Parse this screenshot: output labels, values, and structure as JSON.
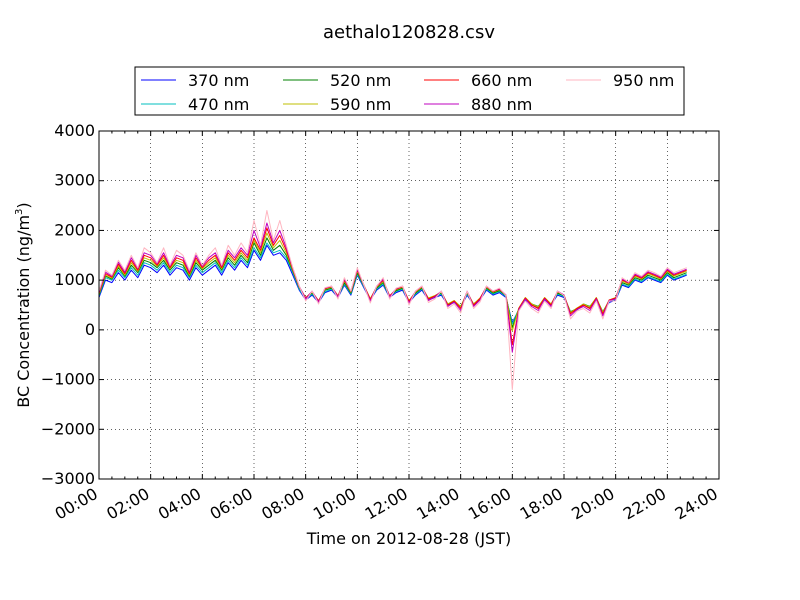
{
  "chart_data": {
    "type": "line",
    "title": "aethalo120828.csv",
    "xlabel": "Time on 2012-08-28 (JST)",
    "ylabel": "BC Concentration (ng/m",
    "ylabel_sup": "3",
    "ylabel_tail": ")",
    "x_unit": "hours",
    "xlim": [
      0,
      24
    ],
    "ylim": [
      -3000,
      4000
    ],
    "grid": true,
    "legend_placement": "top, above plot",
    "x_ticks": [
      {
        "value": 0,
        "label": "00:00"
      },
      {
        "value": 2,
        "label": "02:00"
      },
      {
        "value": 4,
        "label": "04:00"
      },
      {
        "value": 6,
        "label": "06:00"
      },
      {
        "value": 8,
        "label": "08:00"
      },
      {
        "value": 10,
        "label": "10:00"
      },
      {
        "value": 12,
        "label": "12:00"
      },
      {
        "value": 14,
        "label": "14:00"
      },
      {
        "value": 16,
        "label": "16:00"
      },
      {
        "value": 18,
        "label": "18:00"
      },
      {
        "value": 20,
        "label": "20:00"
      },
      {
        "value": 22,
        "label": "22:00"
      },
      {
        "value": 24,
        "label": "24:00"
      }
    ],
    "y_ticks": [
      {
        "value": 4000,
        "label": "4000"
      },
      {
        "value": 3000,
        "label": "3000"
      },
      {
        "value": 2000,
        "label": "2000"
      },
      {
        "value": 1000,
        "label": "1000"
      },
      {
        "value": 0,
        "label": "0"
      },
      {
        "value": -1000,
        "label": "−1000"
      },
      {
        "value": -2000,
        "label": "−2000"
      },
      {
        "value": -3000,
        "label": "−3000"
      }
    ],
    "x": [
      0.0,
      0.25,
      0.5,
      0.75,
      1.0,
      1.25,
      1.5,
      1.75,
      2.0,
      2.25,
      2.5,
      2.75,
      3.0,
      3.25,
      3.5,
      3.75,
      4.0,
      4.25,
      4.5,
      4.75,
      5.0,
      5.25,
      5.5,
      5.75,
      6.0,
      6.25,
      6.5,
      6.75,
      7.0,
      7.25,
      7.5,
      7.75,
      8.0,
      8.25,
      8.5,
      8.75,
      9.0,
      9.25,
      9.5,
      9.75,
      10.0,
      10.25,
      10.5,
      10.75,
      11.0,
      11.25,
      11.5,
      11.75,
      12.0,
      12.25,
      12.5,
      12.75,
      13.0,
      13.25,
      13.5,
      13.75,
      14.0,
      14.25,
      14.5,
      14.75,
      15.0,
      15.25,
      15.5,
      15.75,
      16.0,
      16.25,
      16.5,
      16.75,
      17.0,
      17.25,
      17.5,
      17.75,
      18.0,
      18.25,
      18.5,
      18.75,
      19.0,
      19.25,
      19.5,
      19.75,
      20.0,
      20.25,
      20.5,
      20.75,
      21.0,
      21.25,
      21.5,
      21.75,
      22.0,
      22.25,
      22.5,
      22.75
    ],
    "series": [
      {
        "name": "370 nm",
        "color": "#0000ff",
        "values": [
          650,
          1000,
          950,
          1150,
          1000,
          1200,
          1050,
          1300,
          1250,
          1150,
          1300,
          1100,
          1250,
          1200,
          1000,
          1250,
          1100,
          1200,
          1300,
          1100,
          1350,
          1200,
          1400,
          1250,
          1600,
          1400,
          1700,
          1500,
          1550,
          1400,
          1100,
          800,
          600,
          700,
          550,
          750,
          800,
          650,
          900,
          700,
          1100,
          850,
          600,
          800,
          900,
          650,
          750,
          800,
          550,
          700,
          800,
          600,
          650,
          700,
          500,
          550,
          450,
          700,
          500,
          600,
          800,
          700,
          750,
          650,
          150,
          400,
          600,
          500,
          450,
          600,
          500,
          700,
          650,
          350,
          400,
          500,
          450,
          600,
          350,
          550,
          600,
          900,
          850,
          1000,
          950,
          1050,
          1000,
          950,
          1100,
          1000,
          1050,
          1100
        ]
      },
      {
        "name": "470 nm",
        "color": "#00bfbf",
        "values": [
          680,
          1050,
          1000,
          1200,
          1050,
          1250,
          1100,
          1350,
          1300,
          1200,
          1350,
          1150,
          1300,
          1250,
          1050,
          1300,
          1150,
          1250,
          1350,
          1150,
          1400,
          1250,
          1450,
          1300,
          1650,
          1450,
          1750,
          1550,
          1600,
          1450,
          1150,
          820,
          620,
          720,
          570,
          770,
          820,
          670,
          920,
          720,
          1120,
          870,
          620,
          820,
          920,
          670,
          770,
          820,
          570,
          720,
          820,
          620,
          670,
          720,
          520,
          570,
          470,
          720,
          520,
          620,
          820,
          720,
          770,
          670,
          120,
          420,
          620,
          520,
          470,
          620,
          520,
          720,
          670,
          370,
          420,
          520,
          470,
          620,
          370,
          570,
          620,
          920,
          870,
          1020,
          970,
          1070,
          1020,
          970,
          1120,
          1020,
          1070,
          1120
        ]
      },
      {
        "name": "520 nm",
        "color": "#008000",
        "values": [
          700,
          1080,
          1020,
          1250,
          1080,
          1300,
          1150,
          1400,
          1350,
          1250,
          1400,
          1200,
          1350,
          1300,
          1080,
          1350,
          1200,
          1300,
          1400,
          1200,
          1450,
          1300,
          1500,
          1350,
          1750,
          1500,
          1850,
          1600,
          1700,
          1500,
          1180,
          850,
          640,
          740,
          580,
          800,
          840,
          680,
          950,
          740,
          1150,
          890,
          620,
          840,
          950,
          680,
          790,
          840,
          580,
          740,
          840,
          630,
          680,
          740,
          520,
          580,
          470,
          740,
          520,
          630,
          840,
          740,
          790,
          690,
          50,
          430,
          640,
          520,
          470,
          640,
          520,
          740,
          690,
          360,
          430,
          520,
          470,
          640,
          360,
          590,
          640,
          950,
          900,
          1050,
          1000,
          1100,
          1050,
          1000,
          1150,
          1050,
          1100,
          1150
        ]
      },
      {
        "name": "590 nm",
        "color": "#bfbf00",
        "values": [
          720,
          1100,
          1040,
          1280,
          1100,
          1350,
          1180,
          1450,
          1400,
          1280,
          1450,
          1230,
          1400,
          1350,
          1100,
          1400,
          1230,
          1350,
          1450,
          1230,
          1500,
          1350,
          1550,
          1400,
          1800,
          1550,
          1950,
          1650,
          1800,
          1550,
          1200,
          860,
          650,
          760,
          590,
          820,
          860,
          690,
          980,
          760,
          1180,
          900,
          630,
          860,
          980,
          690,
          810,
          860,
          590,
          760,
          860,
          640,
          690,
          760,
          520,
          590,
          460,
          760,
          520,
          640,
          860,
          760,
          810,
          700,
          -20,
          440,
          650,
          520,
          460,
          650,
          520,
          760,
          700,
          350,
          440,
          520,
          460,
          650,
          350,
          600,
          650,
          980,
          920,
          1080,
          1020,
          1130,
          1080,
          1020,
          1180,
          1080,
          1130,
          1180
        ]
      },
      {
        "name": "660 nm",
        "color": "#ff0000",
        "values": [
          740,
          1130,
          1060,
          1320,
          1130,
          1400,
          1200,
          1500,
          1450,
          1300,
          1500,
          1250,
          1450,
          1400,
          1130,
          1450,
          1250,
          1400,
          1500,
          1250,
          1550,
          1400,
          1600,
          1450,
          1850,
          1600,
          2050,
          1700,
          1900,
          1600,
          1220,
          870,
          640,
          770,
          580,
          830,
          870,
          680,
          1000,
          770,
          1200,
          900,
          610,
          870,
          1000,
          680,
          820,
          870,
          570,
          770,
          870,
          620,
          680,
          770,
          500,
          580,
          430,
          770,
          500,
          630,
          870,
          770,
          820,
          700,
          -300,
          430,
          640,
          500,
          430,
          640,
          500,
          770,
          700,
          320,
          430,
          500,
          430,
          640,
          320,
          600,
          640,
          1000,
          940,
          1100,
          1040,
          1150,
          1100,
          1040,
          1200,
          1100,
          1150,
          1200
        ]
      },
      {
        "name": "880 nm",
        "color": "#bf00bf",
        "values": [
          760,
          1160,
          1080,
          1360,
          1160,
          1450,
          1230,
          1550,
          1500,
          1330,
          1550,
          1280,
          1500,
          1450,
          1160,
          1500,
          1280,
          1450,
          1550,
          1280,
          1600,
          1450,
          1650,
          1500,
          2000,
          1650,
          2150,
          1750,
          2000,
          1650,
          1240,
          880,
          620,
          780,
          560,
          840,
          880,
          660,
          1020,
          780,
          1220,
          900,
          580,
          880,
          1020,
          660,
          830,
          880,
          540,
          780,
          880,
          590,
          660,
          780,
          470,
          560,
          390,
          780,
          470,
          600,
          880,
          780,
          830,
          700,
          -450,
          410,
          620,
          470,
          390,
          620,
          470,
          780,
          700,
          280,
          410,
          470,
          390,
          620,
          280,
          590,
          620,
          1020,
          950,
          1120,
          1060,
          1170,
          1120,
          1060,
          1220,
          1120,
          1170,
          1220
        ]
      },
      {
        "name": "950 nm",
        "color": "#ffb6c1",
        "values": [
          780,
          1200,
          1100,
          1400,
          1200,
          1500,
          1250,
          1650,
          1550,
          1350,
          1650,
          1300,
          1600,
          1500,
          1200,
          1550,
          1300,
          1500,
          1650,
          1300,
          1700,
          1500,
          1750,
          1550,
          2200,
          1700,
          2400,
          1800,
          2200,
          1700,
          1250,
          880,
          580,
          780,
          520,
          850,
          880,
          620,
          1050,
          780,
          1250,
          900,
          540,
          880,
          1050,
          620,
          840,
          880,
          500,
          780,
          880,
          550,
          620,
          780,
          430,
          520,
          340,
          780,
          430,
          560,
          880,
          780,
          840,
          690,
          -1200,
          380,
          580,
          430,
          340,
          580,
          430,
          780,
          690,
          220,
          380,
          430,
          340,
          580,
          220,
          580,
          580,
          1050,
          960,
          1150,
          1080,
          1200,
          1150,
          1080,
          1250,
          1150,
          1200,
          1250
        ]
      }
    ]
  }
}
